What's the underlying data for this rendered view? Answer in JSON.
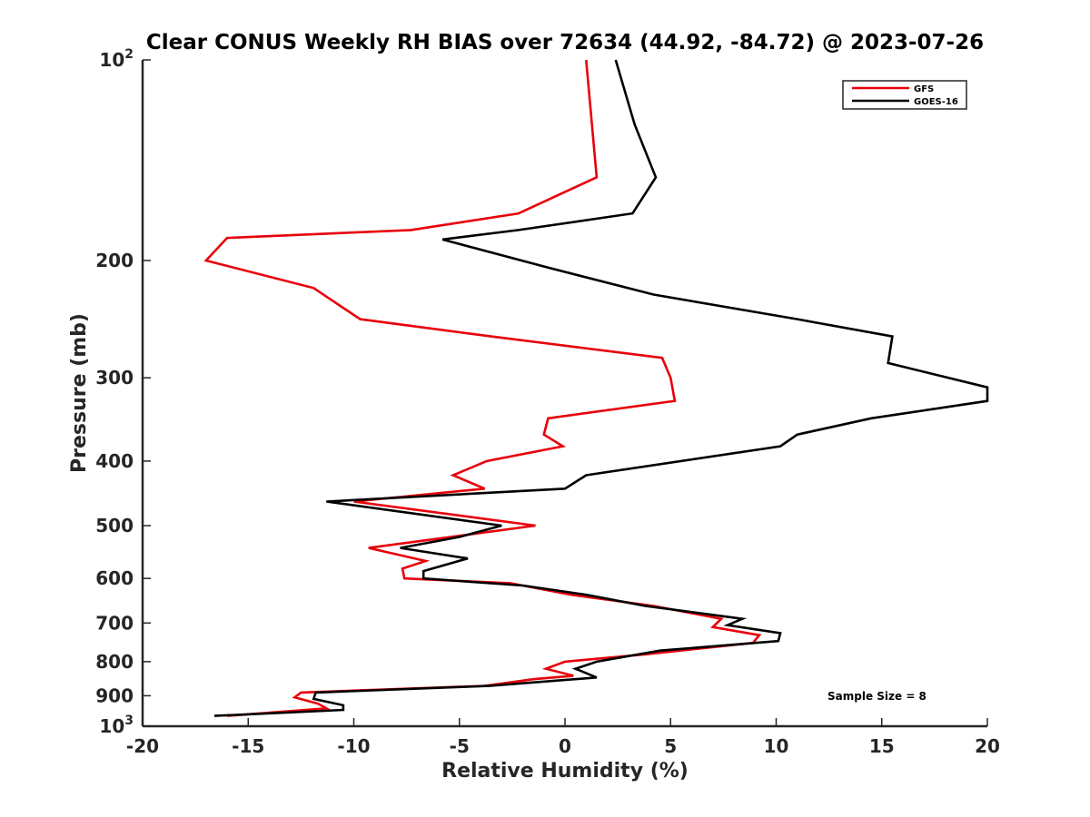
{
  "chart_data": {
    "type": "line",
    "title": "Clear CONUS Weekly RH BIAS over 72634 (44.92, -84.72) @ 2023-07-26",
    "xlabel": "Relative Humidity (%)",
    "ylabel": "Pressure (mb)",
    "xlim": [
      -20,
      20
    ],
    "ylim": [
      100,
      1000
    ],
    "yscale": "log",
    "yreversed": true,
    "grid": false,
    "legend_position": "top-right",
    "x_ticks": [
      {
        "value": -20,
        "label": "-20"
      },
      {
        "value": -15,
        "label": "-15"
      },
      {
        "value": -10,
        "label": "-10"
      },
      {
        "value": -5,
        "label": "-5"
      },
      {
        "value": 0,
        "label": "0"
      },
      {
        "value": 5,
        "label": "5"
      },
      {
        "value": 10,
        "label": "10"
      },
      {
        "value": 15,
        "label": "15"
      },
      {
        "value": 20,
        "label": "20"
      }
    ],
    "y_ticks": [
      {
        "value": 100,
        "base": "10",
        "exp": "2"
      },
      {
        "value": 200,
        "base": "200",
        "exp": ""
      },
      {
        "value": 300,
        "base": "300",
        "exp": ""
      },
      {
        "value": 400,
        "base": "400",
        "exp": ""
      },
      {
        "value": 500,
        "base": "500",
        "exp": ""
      },
      {
        "value": 600,
        "base": "600",
        "exp": ""
      },
      {
        "value": 700,
        "base": "700",
        "exp": ""
      },
      {
        "value": 800,
        "base": "800",
        "exp": ""
      },
      {
        "value": 900,
        "base": "900",
        "exp": ""
      },
      {
        "value": 1000,
        "base": "10",
        "exp": "3"
      }
    ],
    "series": [
      {
        "name": "GFS",
        "color": "#e8000b",
        "points": [
          {
            "x": 1.0,
            "p": 100
          },
          {
            "x": 1.5,
            "p": 150
          },
          {
            "x": -2.2,
            "p": 170
          },
          {
            "x": -7.3,
            "p": 180
          },
          {
            "x": -16.0,
            "p": 185
          },
          {
            "x": -17.0,
            "p": 200
          },
          {
            "x": -11.9,
            "p": 220
          },
          {
            "x": -9.7,
            "p": 245
          },
          {
            "x": -3.5,
            "p": 260
          },
          {
            "x": 4.6,
            "p": 280
          },
          {
            "x": 5.0,
            "p": 300
          },
          {
            "x": 5.2,
            "p": 325
          },
          {
            "x": -0.8,
            "p": 345
          },
          {
            "x": -1.0,
            "p": 365
          },
          {
            "x": -0.1,
            "p": 380
          },
          {
            "x": -3.7,
            "p": 400
          },
          {
            "x": -5.3,
            "p": 420
          },
          {
            "x": -3.8,
            "p": 440
          },
          {
            "x": -10.0,
            "p": 460
          },
          {
            "x": -1.4,
            "p": 500
          },
          {
            "x": -9.3,
            "p": 540
          },
          {
            "x": -6.6,
            "p": 565
          },
          {
            "x": -7.7,
            "p": 580
          },
          {
            "x": -7.6,
            "p": 600
          },
          {
            "x": -2.6,
            "p": 610
          },
          {
            "x": 0.3,
            "p": 635
          },
          {
            "x": 4.2,
            "p": 660
          },
          {
            "x": 7.4,
            "p": 690
          },
          {
            "x": 7.0,
            "p": 710
          },
          {
            "x": 9.2,
            "p": 730
          },
          {
            "x": 8.9,
            "p": 750
          },
          {
            "x": 3.8,
            "p": 780
          },
          {
            "x": 0.0,
            "p": 800
          },
          {
            "x": -0.9,
            "p": 820
          },
          {
            "x": 0.4,
            "p": 840
          },
          {
            "x": -1.5,
            "p": 850
          },
          {
            "x": -3.8,
            "p": 870
          },
          {
            "x": -12.5,
            "p": 890
          },
          {
            "x": -12.8,
            "p": 905
          },
          {
            "x": -11.7,
            "p": 925
          },
          {
            "x": -11.3,
            "p": 940
          },
          {
            "x": -16.0,
            "p": 965
          }
        ]
      },
      {
        "name": "GOES-16",
        "color": "#000000",
        "points": [
          {
            "x": 2.4,
            "p": 100
          },
          {
            "x": 3.3,
            "p": 125
          },
          {
            "x": 4.3,
            "p": 150
          },
          {
            "x": 3.2,
            "p": 170
          },
          {
            "x": -2.2,
            "p": 180
          },
          {
            "x": -5.8,
            "p": 186
          },
          {
            "x": -0.8,
            "p": 205
          },
          {
            "x": 4.2,
            "p": 225
          },
          {
            "x": 11.0,
            "p": 245
          },
          {
            "x": 15.5,
            "p": 260
          },
          {
            "x": 15.3,
            "p": 285
          },
          {
            "x": 20.0,
            "p": 310
          },
          {
            "x": 20.0,
            "p": 325
          },
          {
            "x": 14.5,
            "p": 345
          },
          {
            "x": 11.0,
            "p": 365
          },
          {
            "x": 10.2,
            "p": 380
          },
          {
            "x": 1.0,
            "p": 420
          },
          {
            "x": 0.0,
            "p": 440
          },
          {
            "x": -11.3,
            "p": 460
          },
          {
            "x": -3.0,
            "p": 500
          },
          {
            "x": -5.0,
            "p": 520
          },
          {
            "x": -7.8,
            "p": 540
          },
          {
            "x": -4.6,
            "p": 560
          },
          {
            "x": -6.7,
            "p": 585
          },
          {
            "x": -6.7,
            "p": 600
          },
          {
            "x": -2.0,
            "p": 615
          },
          {
            "x": 1.0,
            "p": 635
          },
          {
            "x": 3.8,
            "p": 660
          },
          {
            "x": 8.4,
            "p": 690
          },
          {
            "x": 7.7,
            "p": 705
          },
          {
            "x": 10.2,
            "p": 725
          },
          {
            "x": 10.1,
            "p": 745
          },
          {
            "x": 4.5,
            "p": 770
          },
          {
            "x": 1.5,
            "p": 800
          },
          {
            "x": 0.5,
            "p": 820
          },
          {
            "x": 1.5,
            "p": 845
          },
          {
            "x": -3.6,
            "p": 870
          },
          {
            "x": -11.8,
            "p": 890
          },
          {
            "x": -11.9,
            "p": 910
          },
          {
            "x": -10.5,
            "p": 930
          },
          {
            "x": -10.5,
            "p": 945
          },
          {
            "x": -16.6,
            "p": 965
          }
        ]
      }
    ],
    "annotations": [
      {
        "text": "Sample Size = 8"
      }
    ]
  }
}
